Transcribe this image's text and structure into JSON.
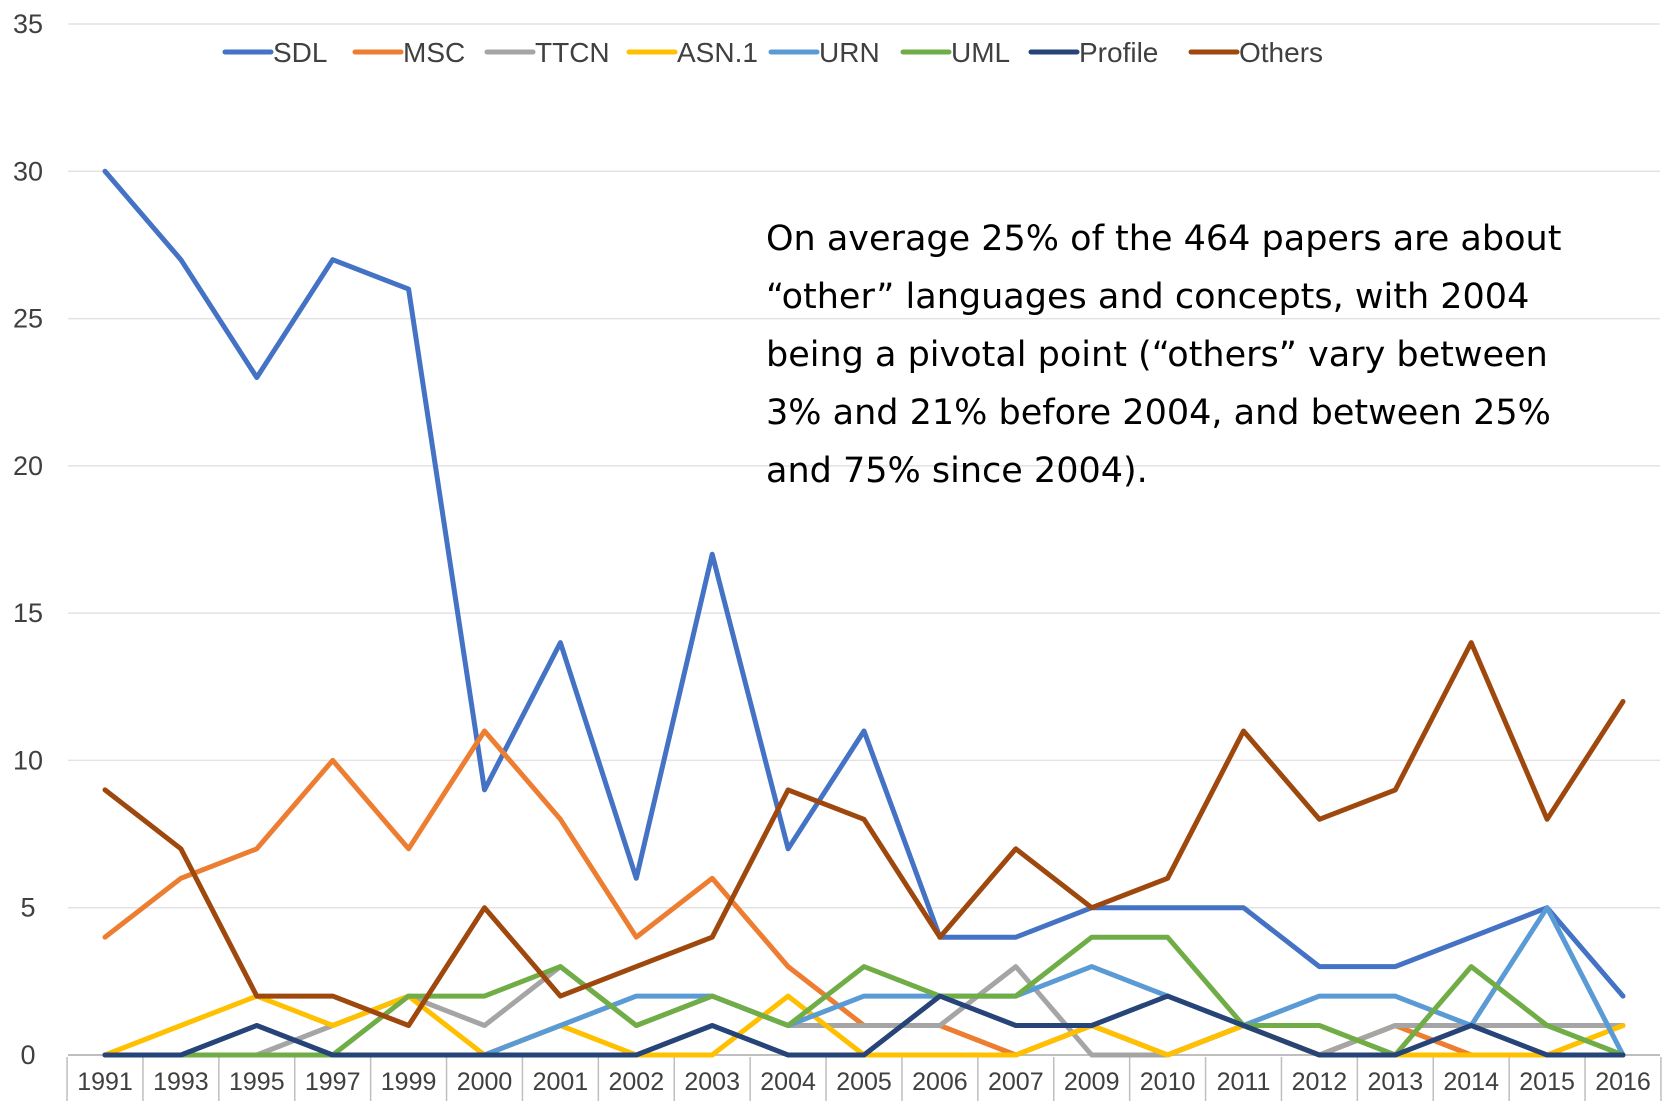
{
  "chart_data": {
    "type": "line",
    "title": "",
    "xlabel": "",
    "ylabel": "",
    "ylim": [
      0,
      35
    ],
    "yticks": [
      0,
      5,
      10,
      15,
      20,
      25,
      30,
      35
    ],
    "grid": "horizontal",
    "legend_position": "top",
    "categories": [
      "1991",
      "1993",
      "1995",
      "1997",
      "1999",
      "2000",
      "2001",
      "2002",
      "2003",
      "2004",
      "2005",
      "2006",
      "2007",
      "2009",
      "2010",
      "2011",
      "2012",
      "2013",
      "2014",
      "2015",
      "2016"
    ],
    "series": [
      {
        "name": "SDL",
        "color": "#4472C4",
        "values": [
          30,
          27,
          23,
          27,
          26,
          9,
          14,
          6,
          17,
          7,
          11,
          4,
          4,
          5,
          5,
          5,
          3,
          3,
          4,
          5,
          2
        ]
      },
      {
        "name": "MSC",
        "color": "#ED7D31",
        "values": [
          4,
          6,
          7,
          10,
          7,
          11,
          8,
          4,
          6,
          3,
          1,
          1,
          0,
          1,
          0,
          1,
          0,
          1,
          0,
          0,
          0
        ]
      },
      {
        "name": "TTCN",
        "color": "#A5A5A5",
        "values": [
          0,
          0,
          0,
          1,
          2,
          1,
          3,
          1,
          2,
          1,
          1,
          1,
          3,
          0,
          0,
          1,
          0,
          1,
          1,
          1,
          1
        ]
      },
      {
        "name": "ASN.1",
        "color": "#FFC000",
        "values": [
          0,
          1,
          2,
          1,
          2,
          0,
          1,
          0,
          0,
          2,
          0,
          0,
          0,
          1,
          0,
          1,
          0,
          0,
          0,
          0,
          1
        ]
      },
      {
        "name": "URN",
        "color": "#5B9BD5",
        "values": [
          0,
          0,
          0,
          0,
          0,
          0,
          1,
          2,
          2,
          1,
          2,
          2,
          2,
          3,
          2,
          1,
          2,
          2,
          1,
          5,
          0
        ]
      },
      {
        "name": "UML",
        "color": "#70AD47",
        "values": [
          0,
          0,
          0,
          0,
          2,
          2,
          3,
          1,
          2,
          1,
          3,
          2,
          2,
          4,
          4,
          1,
          1,
          0,
          3,
          1,
          0
        ]
      },
      {
        "name": "Profile",
        "color": "#264478",
        "values": [
          0,
          0,
          1,
          0,
          0,
          0,
          0,
          0,
          1,
          0,
          0,
          2,
          1,
          1,
          2,
          1,
          0,
          0,
          1,
          0,
          0
        ]
      },
      {
        "name": "Others",
        "color": "#9E480E",
        "values": [
          9,
          7,
          2,
          2,
          1,
          5,
          2,
          3,
          4,
          9,
          8,
          4,
          7,
          5,
          6,
          11,
          8,
          9,
          14,
          8,
          12
        ]
      }
    ],
    "annotation": "On average 25% of the 464 papers are about\n“other” languages and concepts, with 2004\nbeing a pivotal point (“others” vary between\n3% and 21% before 2004, and between 25%\nand 75% since 2004)."
  }
}
